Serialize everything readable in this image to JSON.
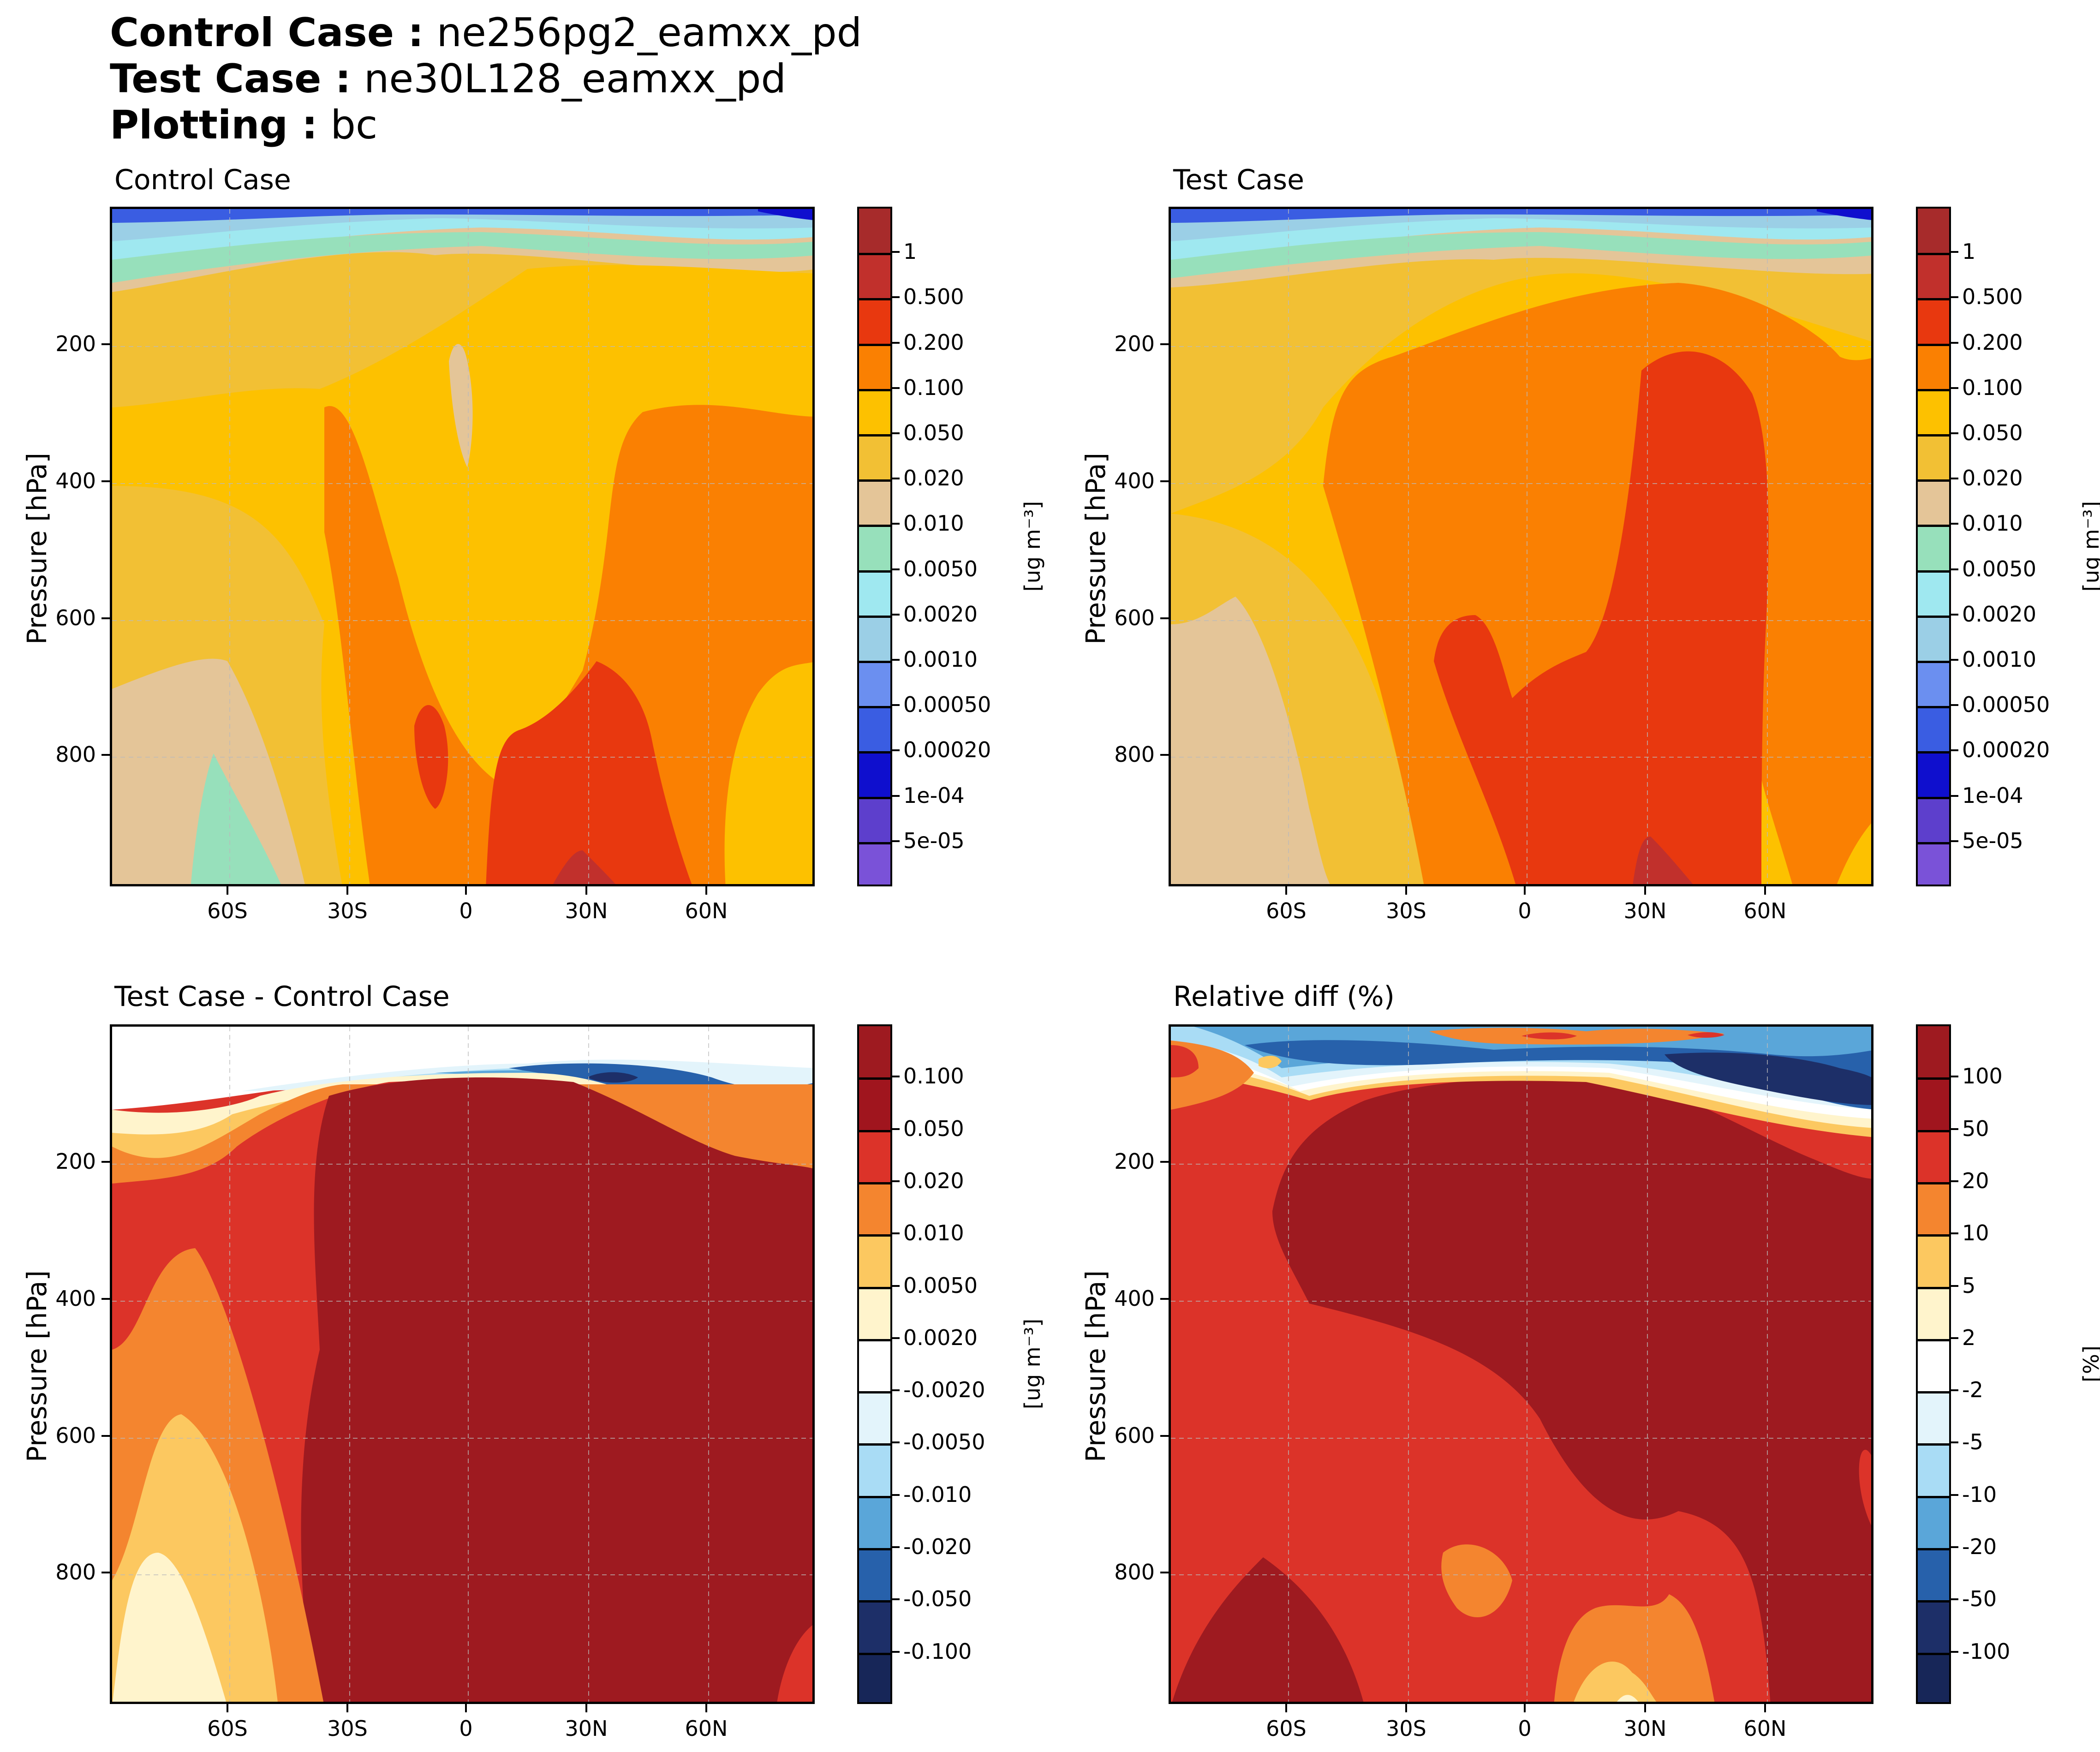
{
  "header": {
    "control_label": "Control Case :",
    "control_value": "ne256pg2_eamxx_pd",
    "test_label": "Test Case :",
    "test_value": "ne30L128_eamxx_pd",
    "plotting_label": "Plotting :",
    "plotting_value": "bc"
  },
  "chart_data": [
    {
      "id": "control",
      "type": "contour",
      "title": "Control Case",
      "ylabel": "Pressure [hPa]",
      "xlabel": "",
      "xticks": [
        "60S",
        "30S",
        "0",
        "30N",
        "60N"
      ],
      "yticks": [
        "200",
        "400",
        "600",
        "800"
      ],
      "colorbar_label": "[ug m⁻³]",
      "colorbar_ticks": [
        "1",
        "0.500",
        "0.200",
        "0.100",
        "0.050",
        "0.020",
        "0.010",
        "0.0050",
        "0.0020",
        "0.0010",
        "0.00050",
        "0.00020",
        "1e-04",
        "5e-05"
      ],
      "colors": [
        "#a72b2b",
        "#c1302c",
        "#e8380f",
        "#fa8002",
        "#fdc100",
        "#f2c034",
        "#e4c598",
        "#97e0bb",
        "#9fe8f0",
        "#9bcfe6",
        "#6b8ff0",
        "#3a5de2",
        "#0f0fce",
        "#5d3fcc",
        "#7a52d8"
      ]
    },
    {
      "id": "test",
      "type": "contour",
      "title": "Test Case",
      "ylabel": "Pressure [hPa]",
      "xlabel": "",
      "xticks": [
        "60S",
        "30S",
        "0",
        "30N",
        "60N"
      ],
      "yticks": [
        "200",
        "400",
        "600",
        "800"
      ],
      "colorbar_label": "[ug m⁻³]",
      "colorbar_ticks": [
        "1",
        "0.500",
        "0.200",
        "0.100",
        "0.050",
        "0.020",
        "0.010",
        "0.0050",
        "0.0020",
        "0.0010",
        "0.00050",
        "0.00020",
        "1e-04",
        "5e-05"
      ],
      "colors": [
        "#a72b2b",
        "#c1302c",
        "#e8380f",
        "#fa8002",
        "#fdc100",
        "#f2c034",
        "#e4c598",
        "#97e0bb",
        "#9fe8f0",
        "#9bcfe6",
        "#6b8ff0",
        "#3a5de2",
        "#0f0fce",
        "#5d3fcc",
        "#7a52d8"
      ]
    },
    {
      "id": "diff",
      "type": "contour",
      "title": "Test Case - Control Case",
      "ylabel": "Pressure [hPa]",
      "xlabel": "",
      "xticks": [
        "60S",
        "30S",
        "0",
        "30N",
        "60N"
      ],
      "yticks": [
        "200",
        "400",
        "600",
        "800"
      ],
      "colorbar_label": "[ug m⁻³]",
      "colorbar_ticks": [
        "0.100",
        "0.050",
        "0.020",
        "0.010",
        "0.0050",
        "0.0020",
        "-0.0020",
        "-0.0050",
        "-0.010",
        "-0.020",
        "-0.050",
        "-0.100"
      ],
      "colors": [
        "#9e1a20",
        "#a0151e",
        "#dc3329",
        "#f4852f",
        "#fcc860",
        "#fff4cc",
        "#ffffff",
        "#e3f4fb",
        "#a9dcf5",
        "#5aa6d9",
        "#2761ab",
        "#1d2f68",
        "#172658"
      ]
    },
    {
      "id": "reldiff",
      "type": "contour",
      "title": "Relative diff (%)",
      "ylabel": "Pressure [hPa]",
      "xlabel": "",
      "xticks": [
        "60S",
        "30S",
        "0",
        "30N",
        "60N"
      ],
      "yticks": [
        "200",
        "400",
        "600",
        "800"
      ],
      "colorbar_label": "[%]",
      "colorbar_ticks": [
        "100",
        "50",
        "20",
        "10",
        "5",
        "2",
        "-2",
        "-5",
        "-10",
        "-20",
        "-50",
        "-100"
      ],
      "colors": [
        "#9e1a20",
        "#a0151e",
        "#dc3329",
        "#f4852f",
        "#fcc860",
        "#fff4cc",
        "#ffffff",
        "#e3f4fb",
        "#a9dcf5",
        "#5aa6d9",
        "#2761ab",
        "#1d2f68",
        "#172658"
      ]
    }
  ]
}
